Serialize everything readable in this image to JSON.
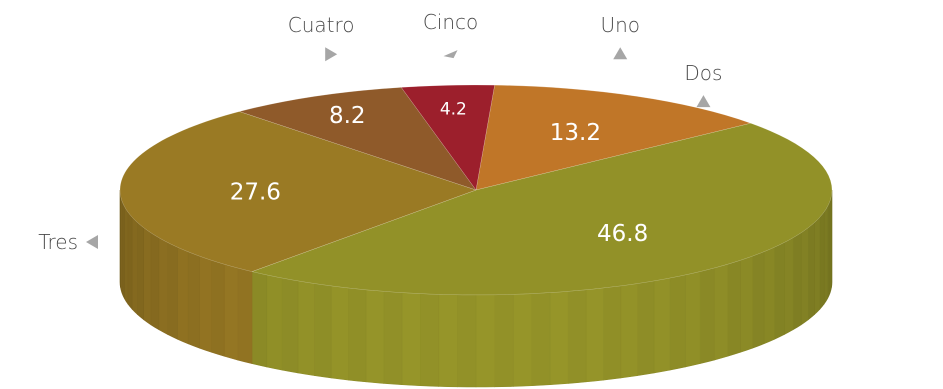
{
  "chart_data": {
    "type": "pie",
    "style": "3d",
    "title": "",
    "legend": "none",
    "slices": [
      {
        "label": "Uno",
        "value": 13.2,
        "color": "#c07628"
      },
      {
        "label": "Dos",
        "value": 46.8,
        "color": "#929128"
      },
      {
        "label": "Tres",
        "value": 27.6,
        "color": "#9a7a24"
      },
      {
        "label": "Cuatro",
        "value": 8.2,
        "color": "#8f5a2a"
      },
      {
        "label": "Cinco",
        "value": 4.2,
        "color": "#9c1f2c"
      }
    ]
  }
}
